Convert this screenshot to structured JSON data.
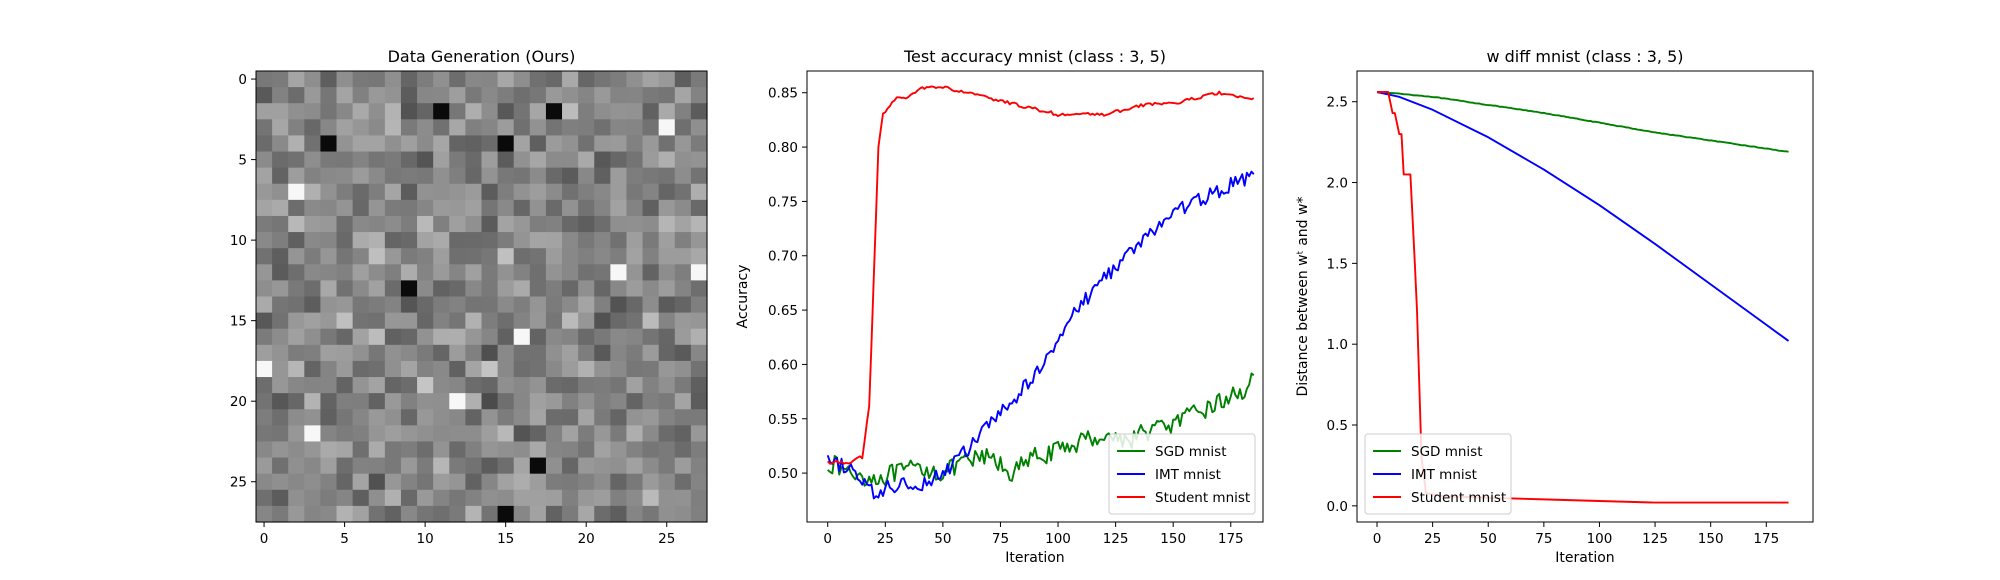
{
  "chart_data": [
    {
      "type": "heatmap",
      "title": "Data Generation (Ours)",
      "colormap": "gray",
      "rows": 28,
      "cols": 28,
      "value_range": [
        0,
        1
      ],
      "xticks": [
        0,
        5,
        10,
        15,
        20,
        25
      ],
      "yticks": [
        0,
        5,
        10,
        15,
        20,
        25
      ],
      "dark_cells": [
        [
          2,
          11
        ],
        [
          2,
          18
        ],
        [
          4,
          4
        ],
        [
          4,
          15
        ],
        [
          13,
          9
        ],
        [
          24,
          17
        ],
        [
          27,
          15
        ]
      ],
      "bright_cells": [
        [
          3,
          25
        ],
        [
          7,
          2
        ],
        [
          12,
          22
        ],
        [
          12,
          27
        ],
        [
          16,
          16
        ],
        [
          18,
          0
        ],
        [
          22,
          3
        ],
        [
          20,
          12
        ]
      ]
    },
    {
      "type": "line",
      "title": "Test accuracy mnist (class : 3, 5)",
      "xlabel": "Iteration",
      "ylabel": "Accuracy",
      "xlim": [
        -9,
        189
      ],
      "ylim": [
        0.455,
        0.87
      ],
      "xticks": [
        0,
        25,
        50,
        75,
        100,
        125,
        150,
        175
      ],
      "yticks": [
        0.5,
        0.55,
        0.6,
        0.65,
        0.7,
        0.75,
        0.8,
        0.85
      ],
      "legend_position": "lower-right",
      "series": [
        {
          "name": "SGD mnist",
          "color": "#008000",
          "x": [
            0,
            10,
            20,
            30,
            40,
            50,
            60,
            70,
            80,
            90,
            100,
            110,
            120,
            130,
            140,
            150,
            160,
            170,
            180,
            185
          ],
          "y": [
            0.51,
            0.5,
            0.495,
            0.5,
            0.505,
            0.5,
            0.51,
            0.515,
            0.5,
            0.515,
            0.52,
            0.53,
            0.535,
            0.53,
            0.54,
            0.545,
            0.555,
            0.565,
            0.575,
            0.59
          ]
        },
        {
          "name": "IMT mnist",
          "color": "#0000ff",
          "x": [
            0,
            10,
            20,
            30,
            40,
            50,
            60,
            70,
            80,
            90,
            100,
            110,
            120,
            130,
            140,
            150,
            160,
            170,
            180,
            185
          ],
          "y": [
            0.51,
            0.505,
            0.48,
            0.49,
            0.49,
            0.5,
            0.52,
            0.545,
            0.565,
            0.59,
            0.625,
            0.655,
            0.68,
            0.7,
            0.72,
            0.74,
            0.75,
            0.76,
            0.77,
            0.775
          ]
        },
        {
          "name": "Student mnist",
          "color": "#ff0000",
          "x": [
            0,
            10,
            15,
            18,
            20,
            22,
            24,
            26,
            30,
            35,
            40,
            50,
            60,
            70,
            80,
            90,
            100,
            110,
            120,
            130,
            140,
            150,
            160,
            170,
            180,
            185
          ],
          "y": [
            0.51,
            0.51,
            0.515,
            0.56,
            0.68,
            0.8,
            0.83,
            0.835,
            0.845,
            0.845,
            0.855,
            0.855,
            0.85,
            0.845,
            0.84,
            0.835,
            0.83,
            0.83,
            0.83,
            0.835,
            0.84,
            0.84,
            0.845,
            0.85,
            0.845,
            0.845
          ]
        }
      ]
    },
    {
      "type": "line",
      "title": "w diff mnist (class : 3, 5)",
      "xlabel": "Iteration",
      "ylabel": "Distance between wᵗ and w*",
      "xlim": [
        -9,
        196
      ],
      "ylim": [
        -0.1,
        2.69
      ],
      "xticks": [
        0,
        25,
        50,
        75,
        100,
        125,
        150,
        175
      ],
      "yticks": [
        0.0,
        0.5,
        1.0,
        1.5,
        2.0,
        2.5
      ],
      "legend_position": "lower-left",
      "series": [
        {
          "name": "SGD mnist",
          "color": "#008000",
          "x": [
            0,
            10,
            25,
            50,
            75,
            100,
            125,
            150,
            175,
            185
          ],
          "y": [
            2.56,
            2.55,
            2.53,
            2.48,
            2.43,
            2.37,
            2.31,
            2.26,
            2.21,
            2.19
          ]
        },
        {
          "name": "IMT mnist",
          "color": "#0000ff",
          "x": [
            0,
            10,
            25,
            50,
            75,
            100,
            125,
            150,
            175,
            185
          ],
          "y": [
            2.56,
            2.53,
            2.45,
            2.28,
            2.08,
            1.86,
            1.62,
            1.37,
            1.12,
            1.02
          ]
        },
        {
          "name": "Student mnist",
          "color": "#ff0000",
          "x": [
            0,
            5,
            7,
            8,
            10,
            11,
            12,
            15,
            17,
            18,
            20,
            22,
            25,
            30,
            50,
            75,
            100,
            125,
            150,
            185
          ],
          "y": [
            2.56,
            2.56,
            2.43,
            2.43,
            2.3,
            2.3,
            2.05,
            2.05,
            1.5,
            1.2,
            0.3,
            0.08,
            0.07,
            0.06,
            0.05,
            0.04,
            0.03,
            0.02,
            0.02,
            0.02
          ]
        }
      ]
    }
  ]
}
